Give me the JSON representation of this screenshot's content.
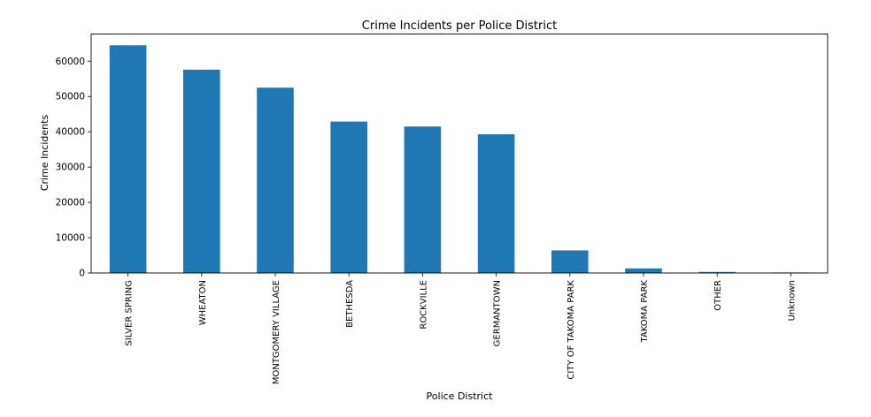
{
  "chart_data": {
    "type": "bar",
    "title": "Crime Incidents per Police District",
    "xlabel": "Police District",
    "ylabel": "Crime Incidents",
    "categories": [
      "SILVER SPRING",
      "WHEATON",
      "MONTGOMERY VILLAGE",
      "BETHESDA",
      "ROCKVILLE",
      "GERMANTOWN",
      "CITY OF TAKOMA PARK",
      "TAKOMA PARK",
      "OTHER",
      "Unknown"
    ],
    "values": [
      64500,
      57600,
      52500,
      42900,
      41500,
      39300,
      6400,
      1300,
      300,
      150
    ],
    "ylim": [
      0,
      67700
    ],
    "yticks": [
      0,
      10000,
      20000,
      30000,
      40000,
      50000,
      60000
    ],
    "grid": false,
    "bar_color": "#1f77b4"
  }
}
